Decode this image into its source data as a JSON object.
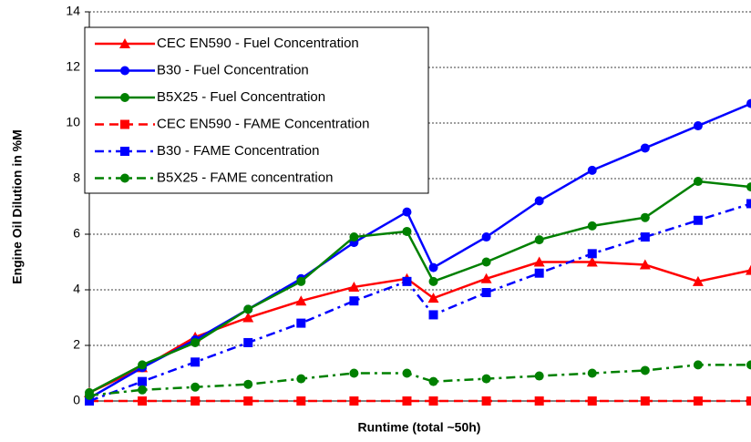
{
  "chart_data": {
    "type": "line",
    "xlabel": "Runtime (total ~50h)",
    "ylabel": "Engine Oil Dilution in %M",
    "x": [
      0,
      1,
      2,
      3,
      4,
      5,
      6,
      6.5,
      7.5,
      8.5,
      9.5,
      10.5,
      11.5,
      12.5
    ],
    "xlim": [
      0,
      12.5
    ],
    "ylim": [
      0,
      14
    ],
    "yticks": [
      0,
      2,
      4,
      6,
      8,
      10,
      12,
      14
    ],
    "grid": true,
    "series": [
      {
        "name": "CEC EN590 - Fuel Concentration",
        "color": "#ff0000",
        "marker": "triangle",
        "dash": "solid",
        "values": [
          0.3,
          1.2,
          2.3,
          3.0,
          3.6,
          4.1,
          4.4,
          3.7,
          4.4,
          5.0,
          5.0,
          4.9,
          4.3,
          4.7
        ]
      },
      {
        "name": "B30 - Fuel Concentration",
        "color": "#0000ff",
        "marker": "circle",
        "dash": "solid",
        "values": [
          0.1,
          1.2,
          2.2,
          3.3,
          4.4,
          5.7,
          6.8,
          4.8,
          5.9,
          7.2,
          8.3,
          9.1,
          9.9,
          10.7
        ]
      },
      {
        "name": "B5X25 - Fuel Concentration",
        "color": "#008000",
        "marker": "circle",
        "dash": "solid",
        "values": [
          0.3,
          1.3,
          2.1,
          3.3,
          4.3,
          5.9,
          6.1,
          4.3,
          5.0,
          5.8,
          6.3,
          6.6,
          7.9,
          7.7
        ]
      },
      {
        "name": "CEC EN590 - FAME Concentration",
        "color": "#ff0000",
        "marker": "square",
        "dash": "dash",
        "values": [
          0,
          0,
          0,
          0,
          0,
          0,
          0,
          0,
          0,
          0,
          0,
          0,
          0,
          0
        ]
      },
      {
        "name": "B30 - FAME Concentration",
        "color": "#0000ff",
        "marker": "square",
        "dash": "dashdot",
        "values": [
          0,
          0.7,
          1.4,
          2.1,
          2.8,
          3.6,
          4.3,
          3.1,
          3.9,
          4.6,
          5.3,
          5.9,
          6.5,
          7.1
        ]
      },
      {
        "name": "B5X25 - FAME concentration",
        "color": "#008000",
        "marker": "circle",
        "dash": "dashdot",
        "values": [
          0.2,
          0.4,
          0.5,
          0.6,
          0.8,
          1.0,
          1.0,
          0.7,
          0.8,
          0.9,
          1.0,
          1.1,
          1.3,
          1.3
        ]
      }
    ]
  }
}
